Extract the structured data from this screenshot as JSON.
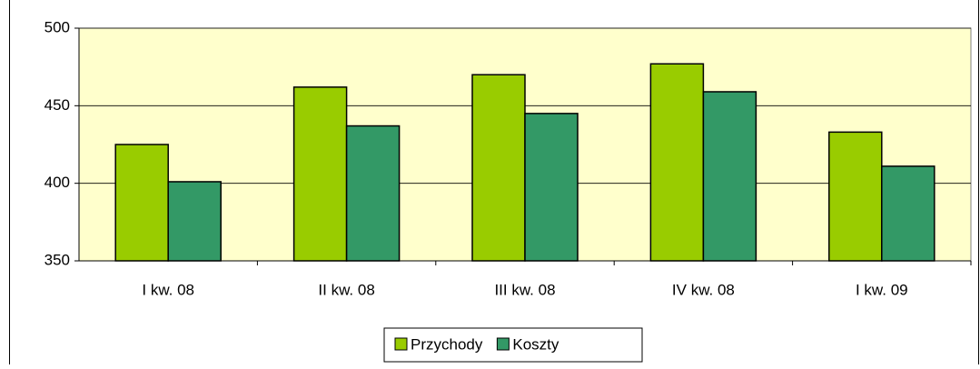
{
  "chart_data": {
    "type": "bar",
    "categories": [
      "I kw. 08",
      "II kw. 08",
      "III kw. 08",
      "IV kw. 08",
      "I kw. 09"
    ],
    "series": [
      {
        "name": "Przychody",
        "color": "#99cc00",
        "values": [
          425,
          462,
          470,
          477,
          433
        ]
      },
      {
        "name": "Koszty",
        "color": "#339966",
        "values": [
          401,
          437,
          445,
          459,
          411
        ]
      }
    ],
    "ylim": [
      350,
      500
    ],
    "yticks": [
      350,
      400,
      450,
      500
    ],
    "grid": true,
    "legend": "bottom"
  }
}
